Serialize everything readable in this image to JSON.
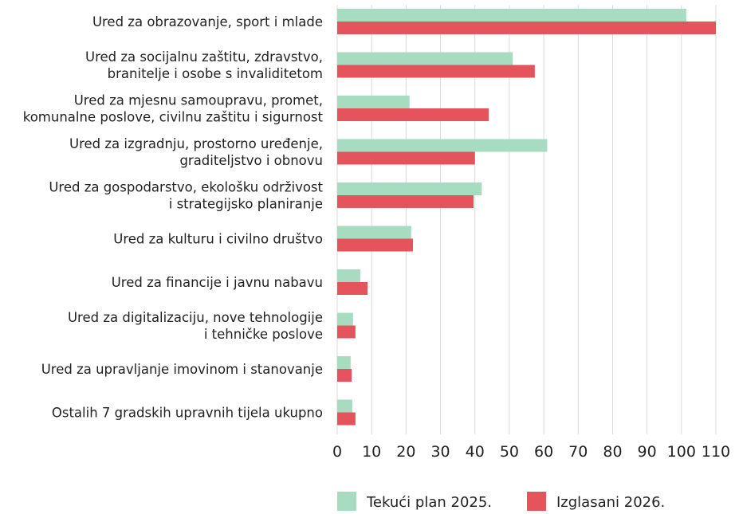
{
  "chart_data": {
    "type": "bar",
    "orientation": "horizontal",
    "categories": [
      "Ured za obrazovanje, sport i mlade",
      "Ured za socijalnu zaštitu, zdravstvo,\nbranitelje i osobe s invaliditetom",
      "Ured za mjesnu samoupravu, promet,\nkomunalne poslove, civilnu zaštitu i sigurnost",
      "Ured za izgradnju, prostorno uređenje,\ngraditeljstvo i obnovu",
      "Ured za gospodarstvo, ekološku održivost\ni strategijsko planiranje",
      "Ured za kulturu i civilno društvo",
      "Ured za financije i javnu nabavu",
      "Ured za digitalizaciju, nove tehnologije\ni tehničke poslove",
      "Ured za upravljanje imovinom i stanovanje",
      "Ostalih 7 gradskih upravnih tijela ukupno"
    ],
    "series": [
      {
        "name": "Tekući plan 2025.",
        "color": "#a8dcc0",
        "values": [
          101.4,
          51,
          21,
          61,
          42,
          21.5,
          6.7,
          4.6,
          3.9,
          4.4
        ]
      },
      {
        "name": "Izglasani 2026.",
        "color": "#e5545c",
        "values": [
          110,
          57.4,
          44,
          40,
          39.6,
          22,
          8.8,
          5.3,
          4.2,
          5.3
        ]
      }
    ],
    "xlim": [
      0,
      110
    ],
    "xticks": [
      0,
      10,
      20,
      30,
      40,
      50,
      60,
      70,
      80,
      90,
      100,
      110
    ],
    "grid": true,
    "legend": "bottom"
  }
}
